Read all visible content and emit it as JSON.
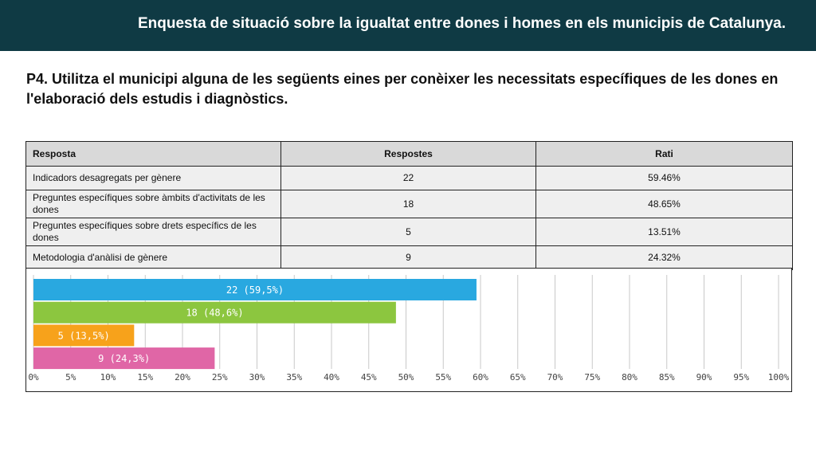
{
  "header": {
    "title": "Enquesta de situació sobre la  igualtat entre dones i homes en els municipis de Catalunya."
  },
  "question": "P4. Utilitza el municipi alguna de les següents eines per conèixer les necessitats específiques de les dones en l'elaboració dels estudis i diagnòstics.",
  "table": {
    "columns": [
      "Resposta",
      "Respostes",
      "Rati"
    ],
    "rows": [
      {
        "label": "Indicadors desagregats per gènere",
        "count": "22",
        "rate": "59.46%"
      },
      {
        "label": "Preguntes específiques sobre àmbits d'activitats de les dones",
        "count": "18",
        "rate": "48.65%"
      },
      {
        "label": "Preguntes específiques sobre drets específics de les dones",
        "count": "5",
        "rate": "13.51%"
      },
      {
        "label": "Metodologia d'anàlisi de gènere",
        "count": "9",
        "rate": "24.32%"
      }
    ]
  },
  "chart_data": {
    "type": "bar",
    "orientation": "horizontal",
    "categories": [
      "Indicadors desagregats per gènere",
      "Preguntes específiques sobre àmbits d'activitats de les dones",
      "Preguntes específiques sobre drets específics de les dones",
      "Metodologia d'anàlisi de gènere"
    ],
    "values": [
      59.46,
      48.65,
      13.51,
      24.32
    ],
    "labels": [
      "22 (59,5%)",
      "18 (48,6%)",
      "5 (13,5%)",
      "9 (24,3%)"
    ],
    "colors": [
      "#29a8e0",
      "#8cc63f",
      "#f7a21b",
      "#e066a6"
    ],
    "xlim": [
      0,
      100
    ],
    "xticks": [
      "0%",
      "5%",
      "10%",
      "15%",
      "20%",
      "25%",
      "30%",
      "35%",
      "40%",
      "45%",
      "50%",
      "55%",
      "60%",
      "65%",
      "70%",
      "75%",
      "80%",
      "85%",
      "90%",
      "95%",
      "100%"
    ],
    "grid": true,
    "title": "",
    "xlabel": "",
    "ylabel": ""
  }
}
